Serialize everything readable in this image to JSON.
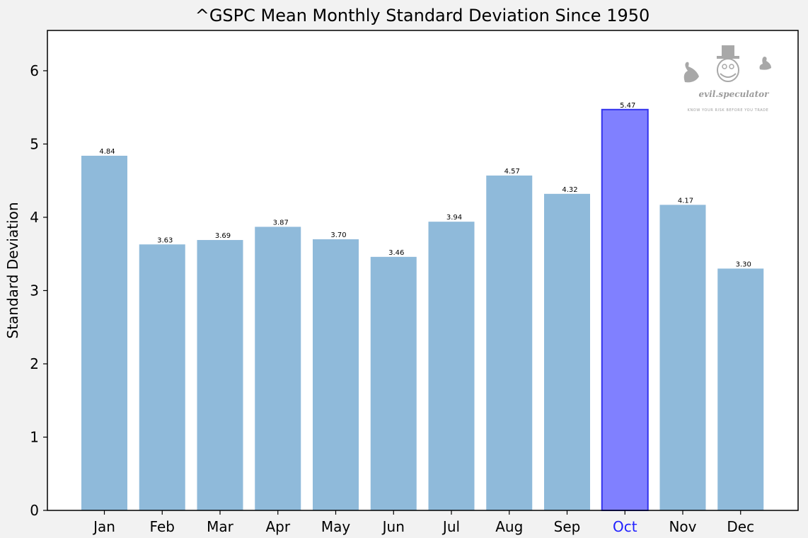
{
  "chart_data": {
    "type": "bar",
    "title": "^GSPC Mean Monthly Standard Deviation Since 1950",
    "xlabel": "",
    "ylabel": "Standard Deviation",
    "categories": [
      "Jan",
      "Feb",
      "Mar",
      "Apr",
      "May",
      "Jun",
      "Jul",
      "Aug",
      "Sep",
      "Oct",
      "Nov",
      "Dec"
    ],
    "values": [
      4.84,
      3.63,
      3.69,
      3.87,
      3.7,
      3.46,
      3.94,
      4.57,
      4.32,
      5.47,
      4.17,
      3.3
    ],
    "data_labels": [
      "4.84",
      "3.63",
      "3.69",
      "3.87",
      "3.70",
      "3.46",
      "3.94",
      "4.57",
      "4.32",
      "5.47",
      "4.17",
      "3.30"
    ],
    "ylim": [
      0,
      6.55
    ],
    "yticks": [
      0,
      1,
      2,
      3,
      4,
      5,
      6
    ],
    "highlight_category": "Oct",
    "grid": false,
    "legend": "none",
    "colors": {
      "bar": "#8fbada",
      "highlight_fill": "#8080ff",
      "highlight_edge": "#3333ee",
      "highlight_tick": "#2020ff",
      "axis": "#000000",
      "plot_bg": "#ffffff",
      "figure_bg": "#f2f2f2"
    }
  },
  "watermark": {
    "name": "evil.speculator",
    "tagline": "KNOW YOUR RISK BEFORE YOU TRADE",
    "icon": "top-hat-villain-logo-icon"
  }
}
